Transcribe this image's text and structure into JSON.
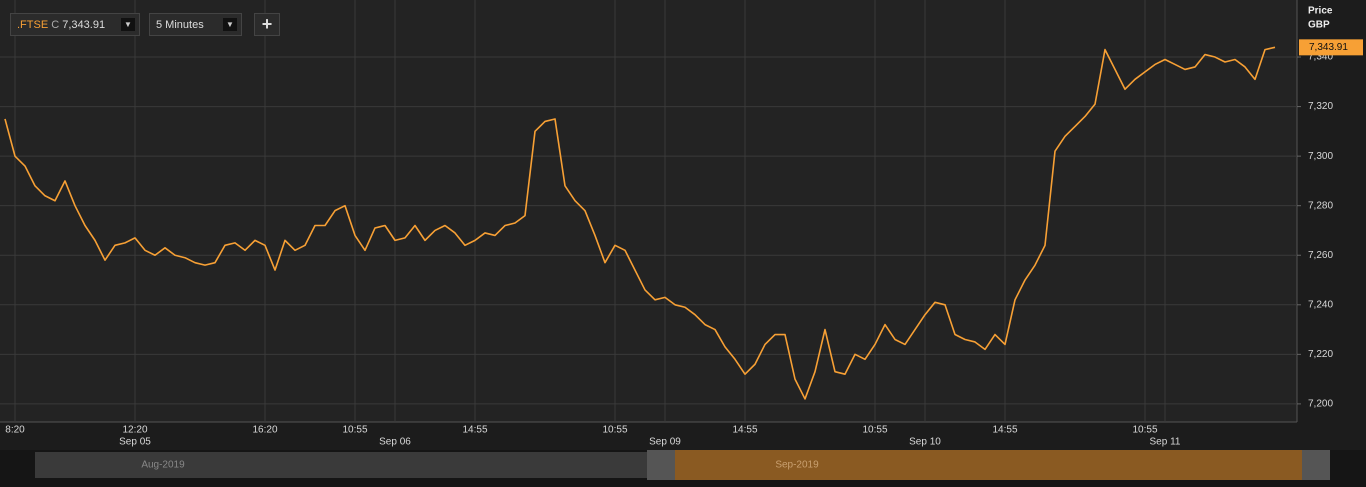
{
  "toolbar": {
    "symbol": ".FTSE",
    "close_flag": "C",
    "close": "7,343.91",
    "interval": "5 Minutes"
  },
  "chart_data": {
    "type": "line",
    "y_label": "Price",
    "y_unit": "GBP",
    "last_label": "7,343.91",
    "categories": [
      null,
      "8:20",
      null,
      null,
      null,
      null,
      null,
      null,
      null,
      null,
      null,
      null,
      null,
      "12:20",
      null,
      null,
      null,
      null,
      null,
      null,
      null,
      null,
      null,
      null,
      null,
      null,
      "16:20",
      null,
      null,
      null,
      null,
      null,
      null,
      null,
      null,
      "10:55",
      null,
      null,
      null,
      null,
      null,
      null,
      null,
      null,
      null,
      null,
      null,
      "14:55",
      null,
      null,
      null,
      null,
      null,
      null,
      null,
      null,
      null,
      null,
      null,
      null,
      null,
      "10:55",
      null,
      null,
      null,
      null,
      null,
      null,
      null,
      null,
      null,
      null,
      null,
      null,
      "14:55",
      null,
      null,
      null,
      null,
      null,
      null,
      null,
      null,
      null,
      null,
      null,
      null,
      "10:55",
      null,
      null,
      null,
      null,
      null,
      null,
      null,
      null,
      null,
      null,
      null,
      null,
      "14:55",
      null,
      null,
      null,
      null,
      null,
      null,
      null,
      null,
      null,
      null,
      null,
      null,
      null,
      "10:55",
      null,
      null,
      null,
      null,
      null,
      null,
      null,
      null,
      null,
      null,
      null,
      null,
      null
    ],
    "dates": [
      null,
      null,
      null,
      null,
      null,
      null,
      null,
      null,
      null,
      null,
      null,
      null,
      null,
      "Sep 05",
      null,
      null,
      null,
      null,
      null,
      null,
      null,
      null,
      null,
      null,
      null,
      null,
      null,
      null,
      null,
      null,
      null,
      null,
      null,
      null,
      null,
      null,
      null,
      null,
      null,
      "Sep 06",
      null,
      null,
      null,
      null,
      null,
      null,
      null,
      null,
      null,
      null,
      null,
      null,
      null,
      null,
      null,
      null,
      null,
      null,
      null,
      null,
      null,
      null,
      null,
      null,
      null,
      null,
      "Sep 09",
      null,
      null,
      null,
      null,
      null,
      null,
      null,
      null,
      null,
      null,
      null,
      null,
      null,
      null,
      null,
      null,
      null,
      null,
      null,
      null,
      null,
      null,
      null,
      null,
      null,
      "Sep 10",
      null,
      null,
      null,
      null,
      null,
      null,
      null,
      null,
      null,
      null,
      null,
      null,
      null,
      null,
      null,
      null,
      null,
      null,
      null,
      null,
      null,
      null,
      null,
      "Sep 11",
      null,
      null,
      null,
      null,
      null,
      null,
      null,
      null,
      null,
      null,
      null
    ],
    "series": [
      {
        "name": ".FTSE",
        "color": "#f7a035",
        "values": [
          7315,
          7300,
          7296,
          7288,
          7284,
          7282,
          7290,
          7280,
          7272,
          7266,
          7258,
          7264,
          7265,
          7267,
          7262,
          7260,
          7263,
          7260,
          7259,
          7257,
          7256,
          7257,
          7264,
          7265,
          7262,
          7266,
          7264,
          7254,
          7266,
          7262,
          7264,
          7272,
          7272,
          7278,
          7280,
          7268,
          7262,
          7271,
          7272,
          7266,
          7267,
          7272,
          7266,
          7270,
          7272,
          7269,
          7264,
          7266,
          7269,
          7268,
          7272,
          7273,
          7276,
          7310,
          7314,
          7315,
          7288,
          7282,
          7278,
          7268,
          7257,
          7264,
          7262,
          7254,
          7246,
          7242,
          7243,
          7240,
          7239,
          7236,
          7232,
          7230,
          7223,
          7218,
          7212,
          7216,
          7224,
          7228,
          7228,
          7210,
          7202,
          7213,
          7230,
          7213,
          7212,
          7220,
          7218,
          7224,
          7232,
          7226,
          7224,
          7230,
          7236,
          7241,
          7240,
          7228,
          7226,
          7225,
          7222,
          7228,
          7224,
          7242,
          7250,
          7256,
          7264,
          7302,
          7308,
          7312,
          7316,
          7321,
          7343,
          7335,
          7327,
          7331,
          7334,
          7337,
          7339,
          7337,
          7335,
          7336,
          7341,
          7340,
          7338,
          7339,
          7336,
          7331,
          7343,
          7343.91
        ]
      }
    ],
    "ylim": [
      7193.5,
      7361
    ],
    "yticks": [
      {
        "value": 7200,
        "label": "7,200"
      },
      {
        "value": 7220,
        "label": "7,220"
      },
      {
        "value": 7240,
        "label": "7,240"
      },
      {
        "value": 7260,
        "label": "7,260"
      },
      {
        "value": 7280,
        "label": "7,280"
      },
      {
        "value": 7300,
        "label": "7,300"
      },
      {
        "value": 7320,
        "label": "7,320"
      },
      {
        "value": 7340,
        "label": "7,340"
      }
    ],
    "grid": true
  },
  "navigator": {
    "labels": [
      "Aug-2019",
      "Sep-2019"
    ]
  }
}
